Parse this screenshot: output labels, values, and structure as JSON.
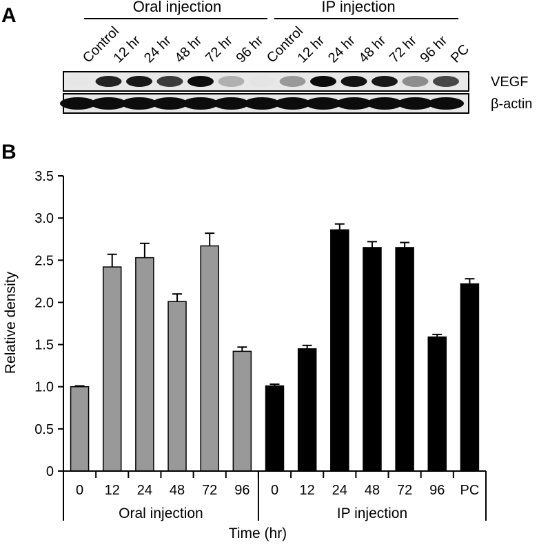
{
  "panel_a": {
    "label": "A",
    "groups": [
      {
        "label": "Oral injection"
      },
      {
        "label": "IP injection"
      }
    ],
    "lanes": [
      "Control",
      "12 hr",
      "24 hr",
      "48 hr",
      "72 hr",
      "96 hr",
      "Control",
      "12 hr",
      "24 hr",
      "48 hr",
      "72 hr",
      "96 hr",
      "PC"
    ],
    "blots": [
      {
        "label": "VEGF",
        "intensity": [
          0.02,
          0.85,
          0.9,
          0.75,
          0.95,
          0.25,
          0.03,
          0.35,
          0.95,
          0.92,
          0.9,
          0.4,
          0.7
        ]
      },
      {
        "label": "β-actin",
        "intensity": [
          0.95,
          0.95,
          0.95,
          0.95,
          0.95,
          0.95,
          0.95,
          0.95,
          0.95,
          0.95,
          0.95,
          0.95,
          0.95
        ]
      }
    ]
  },
  "panel_b": {
    "label": "B"
  },
  "colors": {
    "oral": "#999999",
    "ip": "#000000",
    "axis": "#000000"
  },
  "chart_data": {
    "type": "bar",
    "ylabel": "Relative density",
    "xlabel": "Time (hr)",
    "ylim": [
      0,
      3.5
    ],
    "yticks": [
      "0",
      "0.5",
      "1.0",
      "1.5",
      "2.0",
      "2.5",
      "3.0",
      "3.5"
    ],
    "ytick_values": [
      0,
      0.5,
      1.0,
      1.5,
      2.0,
      2.5,
      3.0,
      3.5
    ],
    "groups": [
      {
        "name": "Oral injection",
        "categories": [
          "0",
          "12",
          "24",
          "48",
          "72",
          "96"
        ],
        "values": [
          1.0,
          2.42,
          2.53,
          2.01,
          2.67,
          1.42
        ],
        "errors": [
          0.01,
          0.15,
          0.17,
          0.09,
          0.15,
          0.05
        ]
      },
      {
        "name": "IP injection",
        "categories": [
          "0",
          "12",
          "24",
          "48",
          "72",
          "96",
          "PC"
        ],
        "values": [
          1.01,
          1.45,
          2.86,
          2.65,
          2.65,
          1.59,
          2.22
        ],
        "errors": [
          0.02,
          0.04,
          0.07,
          0.07,
          0.06,
          0.03,
          0.06
        ]
      }
    ],
    "grid": false,
    "legend": "none"
  }
}
